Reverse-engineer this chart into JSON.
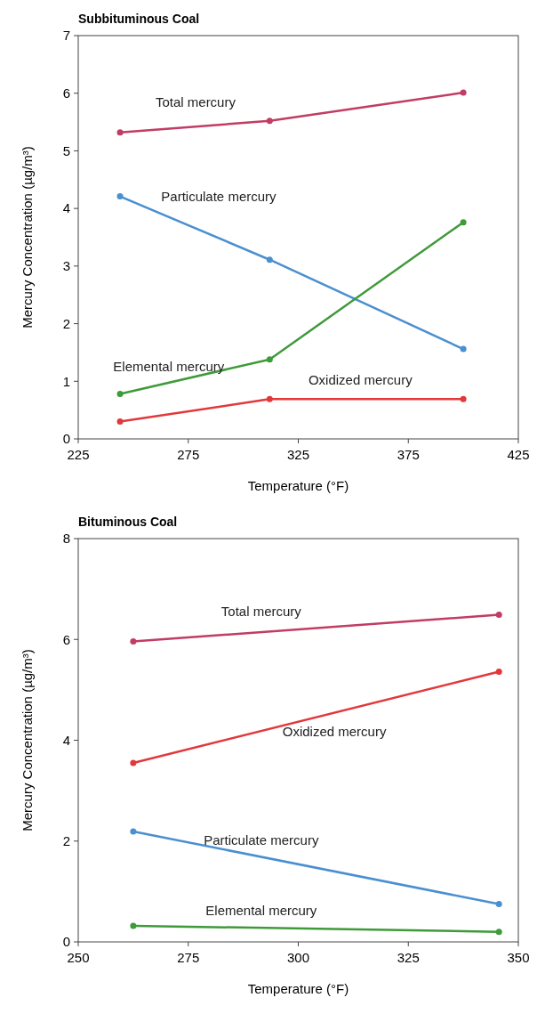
{
  "chart_data": [
    {
      "type": "line",
      "title": "Subbituminous Coal",
      "xlabel": "Temperature (°F)",
      "ylabel": "Mercury Concentration (µg/m³)",
      "x": [
        244,
        312,
        400
      ],
      "xlim": [
        225,
        425
      ],
      "xticks": [
        225,
        275,
        325,
        375,
        425
      ],
      "ylim": [
        0,
        7
      ],
      "yticks": [
        0,
        1,
        2,
        3,
        4,
        5,
        6,
        7
      ],
      "grid": false,
      "marker": "circle",
      "line_style": "solid",
      "series": [
        {
          "name": "Total mercury",
          "color": "#c23c64",
          "values": [
            5.32,
            5.52,
            6.01
          ]
        },
        {
          "name": "Particulate mercury",
          "color": "#4a8fd0",
          "values": [
            4.21,
            3.11,
            1.56
          ]
        },
        {
          "name": "Elemental mercury",
          "color": "#3f9a3a",
          "values": [
            0.78,
            1.38,
            3.76
          ]
        },
        {
          "name": "Oxidized mercury",
          "color": "#e2383a",
          "values": [
            0.3,
            0.69,
            0.69
          ]
        }
      ]
    },
    {
      "type": "line",
      "title": "Bituminous Coal",
      "xlabel": "Temperature (°F)",
      "ylabel": "Mercury Concentration (µg/m³)",
      "x": [
        262.5,
        345.6
      ],
      "xlim": [
        250,
        350
      ],
      "xticks": [
        250,
        275,
        300,
        325,
        350
      ],
      "ylim": [
        0,
        8
      ],
      "yticks": [
        0,
        2,
        4,
        6,
        8
      ],
      "grid": false,
      "marker": "circle",
      "line_style": "solid",
      "series": [
        {
          "name": "Total mercury",
          "color": "#c23c64",
          "values": [
            5.96,
            6.49
          ]
        },
        {
          "name": "Oxidized mercury",
          "color": "#e2383a",
          "values": [
            3.55,
            5.36
          ]
        },
        {
          "name": "Particulate mercury",
          "color": "#4a8fd0",
          "values": [
            2.19,
            0.75
          ]
        },
        {
          "name": "Elemental mercury",
          "color": "#3f9a3a",
          "values": [
            0.32,
            0.2
          ]
        }
      ]
    }
  ]
}
